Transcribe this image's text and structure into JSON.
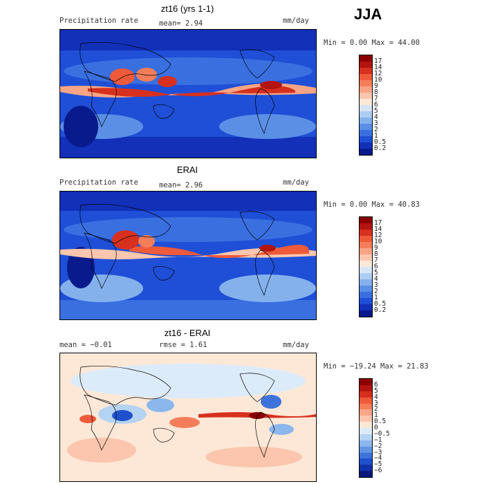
{
  "season": "JJA",
  "panels": [
    {
      "title": "zt16 (yrs 1-1)",
      "left_label": "Precipitation rate",
      "stat1": "mean=   2.94",
      "stat2": "",
      "units": "mm/day",
      "minmax": "Min =   0.00 Max =  44.00",
      "palette": "precip"
    },
    {
      "title": "ERAI",
      "left_label": "Precipitation rate",
      "stat1": "mean=   2.96",
      "stat2": "",
      "units": "mm/day",
      "minmax": "Min =   0.00 Max =  40.83",
      "palette": "precip"
    },
    {
      "title": "zt16 - ERAI",
      "left_label": "mean =  −0.01",
      "stat1": "rmse =   1.61",
      "stat2": "",
      "units": "mm/day",
      "minmax": "Min = −19.24 Max =  21.83",
      "palette": "diff"
    }
  ],
  "colorbars": {
    "precip": {
      "labels": [
        "17",
        "14",
        "12",
        "10",
        "9",
        "8",
        "7",
        "6",
        "5",
        "4",
        "3",
        "2",
        "1",
        "0.5",
        "0.2"
      ],
      "colors": [
        "#8b0000",
        "#b3140f",
        "#d7301f",
        "#ef5a3a",
        "#f47e5a",
        "#f8a585",
        "#fbc6ad",
        "#fde8d8",
        "#d6e6f7",
        "#adcdf2",
        "#84b1ec",
        "#5b8fe6",
        "#3a6fe0",
        "#1f4fd6",
        "#1230b8",
        "#091a8c"
      ]
    },
    "diff": {
      "labels": [
        "6",
        "5",
        "4",
        "3",
        "2",
        "1",
        "0.5",
        "0",
        "−0.5",
        "−1",
        "−2",
        "−3",
        "−4",
        "−5",
        "−6"
      ],
      "colors": [
        "#8b0000",
        "#b3140f",
        "#d7301f",
        "#ef5a3a",
        "#f47e5a",
        "#f8a585",
        "#fbc6ad",
        "#fde8d8",
        "#dcebf9",
        "#b5d3f2",
        "#8cb7ec",
        "#6296e4",
        "#3d73db",
        "#2051cc",
        "#1132a8",
        "#091a7c"
      ]
    }
  }
}
